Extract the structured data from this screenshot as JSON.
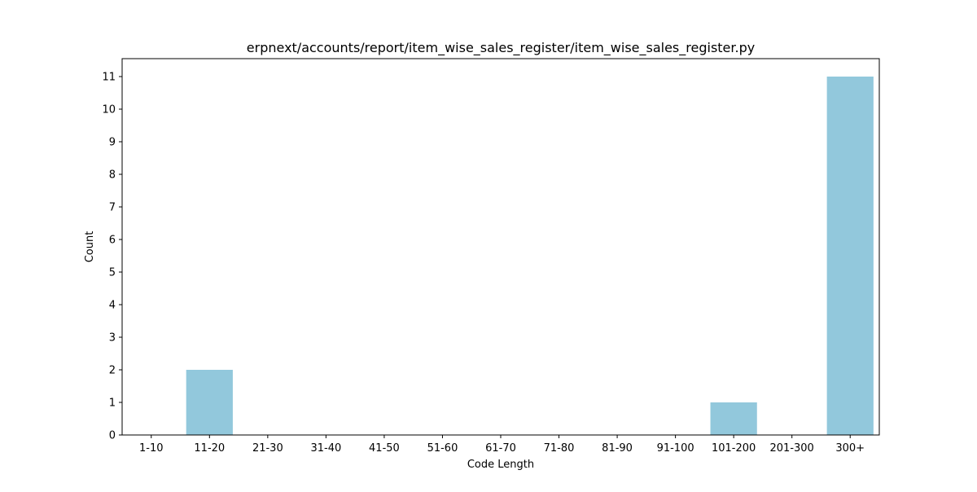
{
  "chart_data": {
    "type": "bar",
    "title": "erpnext/accounts/report/item_wise_sales_register/item_wise_sales_register.py",
    "xlabel": "Code Length",
    "ylabel": "Count",
    "categories": [
      "1-10",
      "11-20",
      "21-30",
      "31-40",
      "41-50",
      "51-60",
      "61-70",
      "71-80",
      "81-90",
      "91-100",
      "101-200",
      "201-300",
      "300+"
    ],
    "values": [
      0,
      2,
      0,
      0,
      0,
      0,
      0,
      0,
      0,
      0,
      1,
      0,
      11
    ],
    "yticks": [
      0,
      1,
      2,
      3,
      4,
      5,
      6,
      7,
      8,
      9,
      10,
      11
    ],
    "ylim": [
      0,
      11.55
    ],
    "bar_color": "#92c8dc",
    "grid": false,
    "legend": "none"
  }
}
